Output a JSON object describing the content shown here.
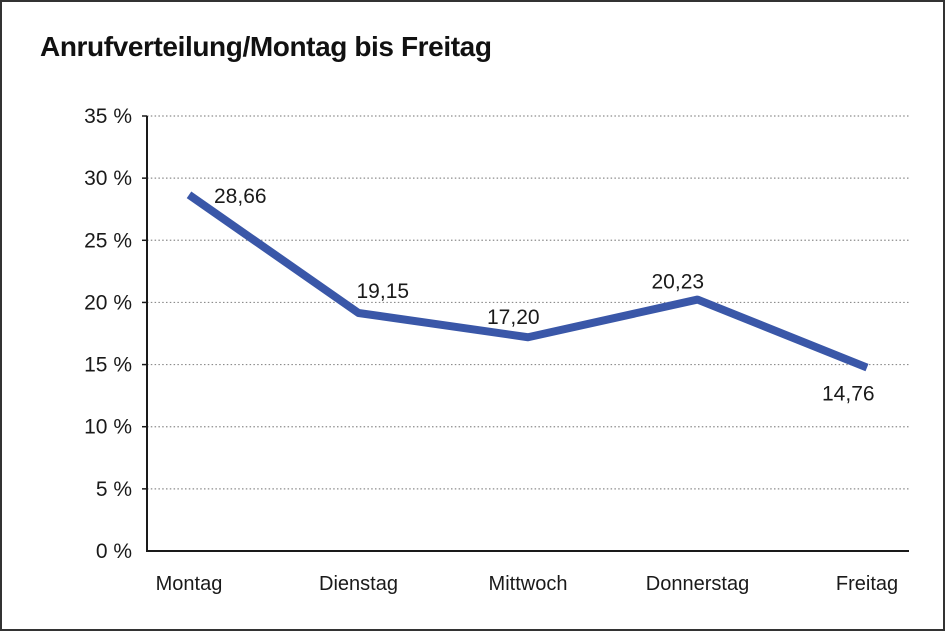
{
  "title": "Anrufverteilung/Montag bis Freitag",
  "chart_data": {
    "type": "line",
    "title": "Anrufverteilung/Montag bis Freitag",
    "categories": [
      "Montag",
      "Dienstag",
      "Mittwoch",
      "Donnerstag",
      "Freitag"
    ],
    "series": [
      {
        "name": "Anrufverteilung",
        "values": [
          28.66,
          19.15,
          17.2,
          20.23,
          14.76
        ]
      }
    ],
    "point_labels": [
      "28,66",
      "19,15",
      "17,20",
      "20,23",
      "14,76"
    ],
    "y_tick_labels": [
      "35 %",
      "30 %",
      "25 %",
      "20 %",
      "15 %",
      "10 %",
      "5 %",
      "0 %"
    ],
    "ylim": [
      0,
      35
    ],
    "y_tick_step": 5,
    "xlabel": "",
    "ylabel": "",
    "grid": "horizontal-dotted",
    "legend": "none",
    "line_color": "#3A57A8",
    "label_color": "#1A1A1A",
    "grid_color": "#8C8C8C",
    "axis_color": "#1A1A1A"
  }
}
